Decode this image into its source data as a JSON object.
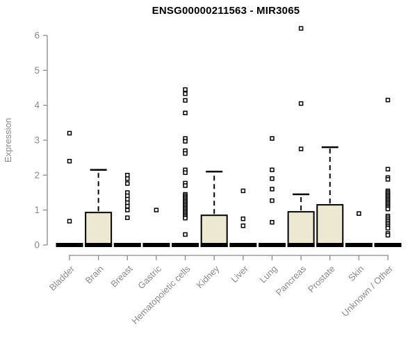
{
  "chart_data": {
    "type": "boxplot",
    "title": "ENSG00000211563 - MIR3065",
    "ylabel": "Expression",
    "xlabel": "",
    "ylim": [
      0,
      6
    ],
    "yticks": [
      0,
      1,
      2,
      3,
      4,
      5,
      6
    ],
    "grid": false,
    "legend": "none",
    "box_fill_color": "#ede8d1",
    "box_stroke_color": "#000000",
    "axis_color": "#8a8a8a",
    "label_color": "#8a8a8a",
    "categories": [
      "Bladder",
      "Brain",
      "Breast",
      "Gastric",
      "Hematopoietic cells",
      "Kidney",
      "Liver",
      "Lung",
      "Pancreas",
      "Prostate",
      "Skin",
      "Unknown / Other"
    ],
    "series": [
      {
        "category": "Bladder",
        "slug": "bladder",
        "q1": 0,
        "median": 0,
        "q3": 0,
        "whisker_low": 0,
        "whisker_high": 0,
        "outliers": [
          3.2,
          2.4,
          0.68
        ]
      },
      {
        "category": "Brain",
        "slug": "brain",
        "q1": 0,
        "median": 0,
        "q3": 0.93,
        "whisker_low": 0,
        "whisker_high": 2.15,
        "outliers": []
      },
      {
        "category": "Breast",
        "slug": "breast",
        "q1": 0,
        "median": 0,
        "q3": 0,
        "whisker_low": 0,
        "whisker_high": 0,
        "outliers": [
          2.0,
          1.9,
          1.76,
          1.5,
          1.41,
          1.31,
          1.21,
          1.11,
          1.0,
          0.78
        ]
      },
      {
        "category": "Gastric",
        "slug": "gastric",
        "q1": 0,
        "median": 0,
        "q3": 0,
        "whisker_low": 0,
        "whisker_high": 0,
        "outliers": [
          1.0
        ]
      },
      {
        "category": "Hematopoietic cells",
        "slug": "hematopoietic-cells",
        "q1": 0,
        "median": 0,
        "q3": 0,
        "whisker_low": 0,
        "whisker_high": 0,
        "outliers": [
          4.45,
          4.33,
          4.14,
          3.78,
          3.05,
          2.97,
          2.7,
          2.62,
          2.15,
          2.07,
          1.77,
          1.7,
          1.45,
          1.41,
          1.37,
          1.33,
          1.29,
          1.25,
          1.21,
          1.17,
          1.13,
          1.09,
          1.05,
          1.01,
          0.97,
          0.93,
          0.89,
          0.85,
          0.81,
          0.77,
          0.3
        ]
      },
      {
        "category": "Kidney",
        "slug": "kidney",
        "q1": 0,
        "median": 0,
        "q3": 0.85,
        "whisker_low": 0,
        "whisker_high": 2.1,
        "outliers": []
      },
      {
        "category": "Liver",
        "slug": "liver",
        "q1": 0,
        "median": 0,
        "q3": 0,
        "whisker_low": 0,
        "whisker_high": 0,
        "outliers": [
          1.55,
          0.75,
          0.55
        ]
      },
      {
        "category": "Lung",
        "slug": "lung",
        "q1": 0,
        "median": 0,
        "q3": 0,
        "whisker_low": 0,
        "whisker_high": 0,
        "outliers": [
          3.05,
          2.15,
          1.9,
          1.6,
          1.27,
          0.65
        ]
      },
      {
        "category": "Pancreas",
        "slug": "pancreas",
        "q1": 0,
        "median": 0,
        "q3": 0.95,
        "whisker_low": 0,
        "whisker_high": 1.45,
        "outliers": [
          6.2,
          4.05,
          2.75
        ]
      },
      {
        "category": "Prostate",
        "slug": "prostate",
        "q1": 0,
        "median": 0,
        "q3": 1.15,
        "whisker_low": 0,
        "whisker_high": 2.8,
        "outliers": []
      },
      {
        "category": "Skin",
        "slug": "skin",
        "q1": 0,
        "median": 0,
        "q3": 0,
        "whisker_low": 0,
        "whisker_high": 0,
        "outliers": [
          0.9
        ]
      },
      {
        "category": "Unknown / Other",
        "slug": "unknown-other",
        "q1": 0,
        "median": 0,
        "q3": 0,
        "whisker_low": 0,
        "whisker_high": 0,
        "outliers": [
          4.15,
          2.17,
          1.93,
          1.88,
          1.55,
          1.51,
          1.47,
          1.43,
          1.39,
          1.35,
          1.31,
          1.27,
          1.23,
          1.19,
          1.15,
          1.11,
          1.07,
          1.03,
          0.83,
          0.78,
          0.73,
          0.68,
          0.63,
          0.58,
          0.53,
          0.48,
          0.33,
          0.28
        ]
      }
    ]
  }
}
